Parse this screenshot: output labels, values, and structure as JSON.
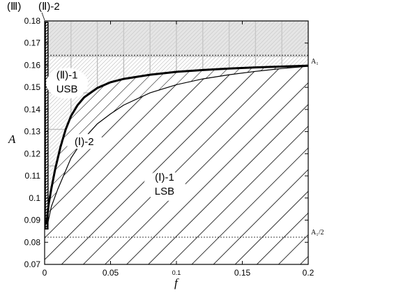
{
  "chart_data": {
    "type": "area",
    "title": "",
    "xlabel": "f",
    "ylabel": "A",
    "xlim": [
      0,
      0.2
    ],
    "ylim": [
      0.07,
      0.18
    ],
    "grid": false,
    "x_ticks": [
      {
        "value": 0,
        "label": "0"
      },
      {
        "value": 0.05,
        "label": "0.05"
      },
      {
        "value": 0.1,
        "label": "0.1"
      },
      {
        "value": 0.15,
        "label": "0.15"
      },
      {
        "value": 0.2,
        "label": "0.2"
      }
    ],
    "y_ticks": [
      {
        "value": 0.07,
        "label": "0.07"
      },
      {
        "value": 0.08,
        "label": "0.08"
      },
      {
        "value": 0.09,
        "label": "0.09"
      },
      {
        "value": 0.1,
        "label": "0.1"
      },
      {
        "value": 0.11,
        "label": "0.11"
      },
      {
        "value": 0.12,
        "label": "0.12"
      },
      {
        "value": 0.13,
        "label": "0.13"
      },
      {
        "value": 0.14,
        "label": "0.14"
      },
      {
        "value": 0.15,
        "label": "0.15"
      },
      {
        "value": 0.16,
        "label": "0.16"
      },
      {
        "value": 0.17,
        "label": "0.17"
      },
      {
        "value": 0.18,
        "label": "0.18"
      }
    ],
    "reference_lines": [
      {
        "label": "A₁",
        "y": 0.1645
      },
      {
        "label": "A₁/2",
        "y": 0.0823
      }
    ],
    "boundary_upper": {
      "x": [
        0.0015,
        0.003,
        0.005,
        0.008,
        0.012,
        0.016,
        0.02,
        0.025,
        0.03,
        0.04,
        0.05,
        0.06,
        0.08,
        0.1,
        0.12,
        0.14,
        0.16,
        0.18,
        0.2
      ],
      "y": [
        0.088,
        0.097,
        0.104,
        0.113,
        0.123,
        0.131,
        0.137,
        0.142,
        0.1455,
        0.1497,
        0.1523,
        0.1538,
        0.1557,
        0.157,
        0.1578,
        0.1585,
        0.159,
        0.1594,
        0.1598
      ]
    },
    "boundary_lower": {
      "x": [
        0.0015,
        0.005,
        0.01,
        0.02,
        0.03,
        0.04,
        0.05,
        0.06,
        0.08,
        0.1,
        0.12,
        0.14,
        0.16,
        0.18,
        0.2
      ],
      "y": [
        0.086,
        0.096,
        0.104,
        0.118,
        0.127,
        0.1335,
        0.138,
        0.142,
        0.1475,
        0.1512,
        0.1538,
        0.1557,
        0.1572,
        0.1585,
        0.1595
      ]
    },
    "regions": [
      {
        "label_line1": "(Ⅱ)-1",
        "label_line2": "USB",
        "x": 0.017,
        "y": 0.1528
      },
      {
        "label_line1": "(Ⅰ)-2",
        "label_line2": "",
        "x": 0.03,
        "y": 0.1255
      },
      {
        "label_line1": "(Ⅰ)-1",
        "label_line2": "LSB",
        "x": 0.091,
        "y": 0.1065
      }
    ],
    "top_labels": [
      "(Ⅲ)",
      "(Ⅱ)-2"
    ]
  }
}
